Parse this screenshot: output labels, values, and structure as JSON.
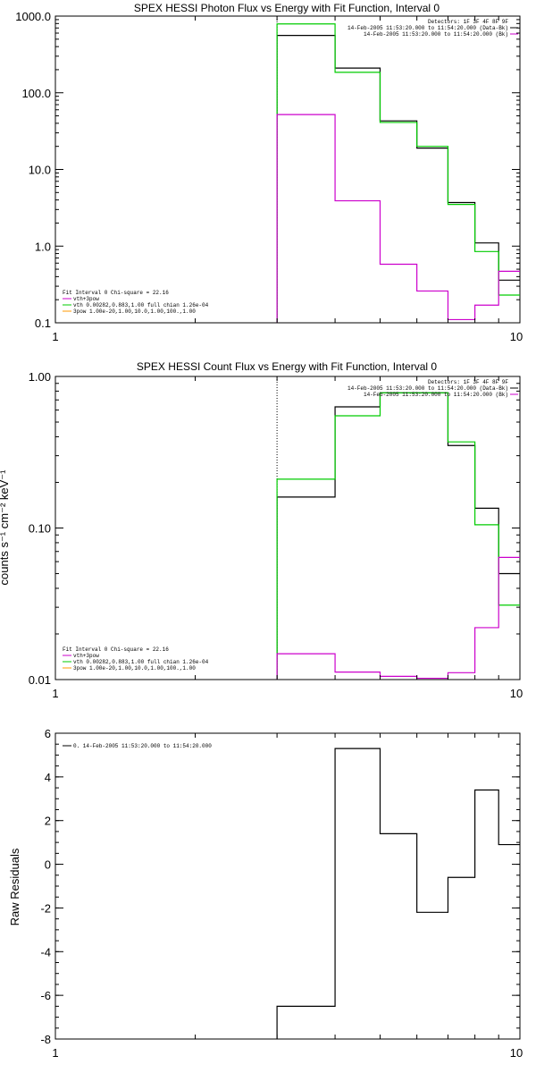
{
  "chart_data": [
    {
      "type": "line",
      "drawstyle": "steps",
      "title": "SPEX HESSI Photon Flux vs Energy with Fit Function, Interval 0",
      "xlabel": "",
      "ylabel": "",
      "xscale": "log",
      "yscale": "log",
      "xlim": [
        1,
        10
      ],
      "ylim": [
        0.1,
        1000
      ],
      "x_ticks": [
        "1",
        "10"
      ],
      "y_ticks": [
        "0.1",
        "1.0",
        "10.0",
        "100.0",
        "1000.0"
      ],
      "y_tick_values": [
        0.1,
        1,
        10,
        100,
        1000
      ],
      "legend_right": [
        "Detectors: 1F 3F 4F 8F 9F",
        "14-Feb-2005 11:53:20.000 to 11:54:20.000 (Data-Bk)",
        "14-Feb-2005 11:53:20.000 to 11:54:20.000 (Bk)"
      ],
      "legend_left": [
        "Fit Interval  0    Chi-square = 22.16",
        "vth+3pow",
        "vth 0.00282,0.883,1.00  full chian 1.26e-04",
        "3pow 1.00e-20,1.00,10.0,1.00,100.,1.00"
      ],
      "bin_edges": [
        3,
        4,
        5,
        6,
        7,
        8,
        9,
        10
      ],
      "series": [
        {
          "color": "#000000",
          "values": [
            560,
            210,
            43,
            19,
            3.7,
            1.1,
            0.36
          ]
        },
        {
          "color": "#00cc00",
          "values": [
            790,
            185,
            41,
            20,
            3.5,
            0.85,
            0.23
          ]
        },
        {
          "color": "#cc00cc",
          "values": [
            52,
            3.9,
            0.58,
            0.26,
            0.11,
            0.17,
            0.47
          ]
        }
      ],
      "vline_x": 3
    },
    {
      "type": "line",
      "drawstyle": "steps",
      "title": "SPEX HESSI Count Flux vs Energy with Fit Function, Interval 0",
      "xlabel": "",
      "ylabel": "counts s⁻¹ cm⁻² keV⁻¹",
      "xscale": "log",
      "yscale": "log",
      "xlim": [
        1,
        10
      ],
      "ylim": [
        0.01,
        1.0
      ],
      "x_ticks": [
        "1",
        "10"
      ],
      "y_ticks": [
        "0.01",
        "0.10",
        "1.00"
      ],
      "y_tick_values": [
        0.01,
        0.1,
        1.0
      ],
      "legend_right": [
        "Detectors: 1F 3F 4F 8F 9F",
        "14-Feb-2005 11:53:20.000 to 11:54:20.000 (Data-Bk)",
        "14-Feb-2005 11:53:20.000 to 11:54:20.000 (Bk)"
      ],
      "legend_left": [
        "Fit Interval  0    Chi-square = 22.16",
        "vth+3pow",
        "vth 0.00282,0.883,1.00  full chian 1.26e-04",
        "3pow 1.00e-20,1.00,10.0,1.00,100.,1.00"
      ],
      "bin_edges": [
        3,
        4,
        5,
        6,
        7,
        8,
        9,
        10
      ],
      "series": [
        {
          "color": "#000000",
          "values": [
            0.16,
            0.63,
            0.78,
            0.78,
            0.35,
            0.135,
            0.05
          ]
        },
        {
          "color": "#00cc00",
          "values": [
            0.21,
            0.55,
            0.78,
            0.78,
            0.37,
            0.105,
            0.031
          ]
        },
        {
          "color": "#cc00cc",
          "values": [
            0.0148,
            0.0112,
            0.0105,
            0.0102,
            0.0111,
            0.022,
            0.064
          ]
        }
      ],
      "vline_x": 3
    },
    {
      "type": "line",
      "drawstyle": "steps",
      "title": "",
      "xlabel": "",
      "ylabel": "Raw Residuals",
      "xscale": "log",
      "yscale": "linear",
      "xlim": [
        1,
        10
      ],
      "ylim": [
        -8,
        6
      ],
      "x_ticks": [
        "1",
        "10"
      ],
      "y_ticks": [
        "-8",
        "-6",
        "-4",
        "-2",
        "0",
        "2",
        "4",
        "6"
      ],
      "y_tick_values": [
        -8,
        -6,
        -4,
        -2,
        0,
        2,
        4,
        6
      ],
      "legend_left": [
        "0. 14-Feb-2005 11:53:20.000 to 11:54:20.000"
      ],
      "bin_edges": [
        3,
        4,
        5,
        6,
        7,
        8,
        9,
        10
      ],
      "series": [
        {
          "color": "#000000",
          "values": [
            -6.5,
            5.3,
            1.4,
            -2.2,
            -0.6,
            3.4,
            0.9
          ]
        }
      ]
    }
  ]
}
